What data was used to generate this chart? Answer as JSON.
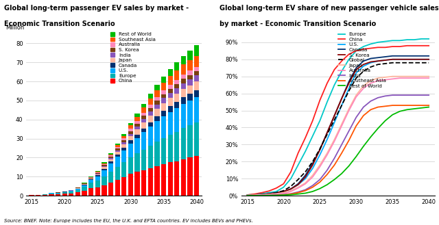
{
  "title1": "Global long-term passenger EV sales by market -\nEconomic Transition Scenario",
  "title2": "Global long-term EV share of new passenger vehicle sales\nby market - Economic Transition Scenario",
  "source": "Source: BNEF. Note: Europe includes the EU, the U.K. and EFTA countries. EV includes BEVs and PHEVs.",
  "years": [
    2015,
    2016,
    2017,
    2018,
    2019,
    2020,
    2021,
    2022,
    2023,
    2024,
    2025,
    2026,
    2027,
    2028,
    2029,
    2030,
    2031,
    2032,
    2033,
    2034,
    2035,
    2036,
    2037,
    2038,
    2039,
    2040
  ],
  "bar_data": {
    "China": [
      0.3,
      0.35,
      0.55,
      0.9,
      0.9,
      1.1,
      1.3,
      1.8,
      2.7,
      4.0,
      4.5,
      5.5,
      7.0,
      8.5,
      9.8,
      11.5,
      12.5,
      13.5,
      14.5,
      15.5,
      16.5,
      17.5,
      18.0,
      19.0,
      20.0,
      21.0
    ],
    "Europe": [
      0.1,
      0.1,
      0.15,
      0.25,
      0.35,
      0.6,
      0.9,
      1.3,
      2.0,
      2.8,
      3.5,
      4.8,
      5.8,
      6.8,
      7.8,
      8.8,
      9.8,
      10.8,
      11.8,
      12.8,
      13.8,
      14.5,
      15.5,
      16.5,
      17.0,
      17.5
    ],
    "U.S.": [
      0.1,
      0.1,
      0.15,
      0.25,
      0.25,
      0.28,
      0.35,
      0.55,
      0.9,
      1.4,
      2.2,
      3.2,
      4.2,
      5.2,
      6.2,
      7.2,
      8.0,
      9.0,
      10.0,
      10.8,
      11.5,
      12.0,
      12.5,
      12.8,
      13.0,
      13.2
    ],
    "Canada": [
      0.0,
      0.0,
      0.0,
      0.04,
      0.04,
      0.08,
      0.09,
      0.15,
      0.25,
      0.35,
      0.55,
      0.75,
      0.95,
      1.15,
      1.35,
      1.6,
      1.85,
      2.1,
      2.35,
      2.6,
      2.85,
      3.05,
      3.2,
      3.35,
      3.45,
      3.55
    ],
    "Japan": [
      0.04,
      0.04,
      0.04,
      0.08,
      0.08,
      0.08,
      0.12,
      0.18,
      0.25,
      0.42,
      0.6,
      0.85,
      1.1,
      1.4,
      1.75,
      2.2,
      2.65,
      3.1,
      3.55,
      3.85,
      4.05,
      4.25,
      4.35,
      4.45,
      4.55,
      4.65
    ],
    "India": [
      0.0,
      0.0,
      0.0,
      0.0,
      0.0,
      0.04,
      0.04,
      0.08,
      0.12,
      0.18,
      0.28,
      0.45,
      0.62,
      0.8,
      1.0,
      1.25,
      1.5,
      1.8,
      2.1,
      2.35,
      2.55,
      2.75,
      2.9,
      3.0,
      3.1,
      3.2
    ],
    "S. Korea": [
      0.0,
      0.0,
      0.04,
      0.04,
      0.08,
      0.08,
      0.12,
      0.18,
      0.25,
      0.35,
      0.45,
      0.62,
      0.8,
      0.98,
      1.18,
      1.38,
      1.55,
      1.72,
      1.85,
      1.95,
      2.05,
      2.12,
      2.18,
      2.22,
      2.25,
      2.28
    ],
    "Australia": [
      0.0,
      0.0,
      0.0,
      0.0,
      0.0,
      0.04,
      0.04,
      0.08,
      0.12,
      0.18,
      0.28,
      0.45,
      0.62,
      0.8,
      1.0,
      1.22,
      1.42,
      1.62,
      1.8,
      1.92,
      2.02,
      2.1,
      2.18,
      2.25,
      2.28,
      2.32
    ],
    "Southeast Asia": [
      0.0,
      0.0,
      0.0,
      0.0,
      0.0,
      0.0,
      0.04,
      0.08,
      0.12,
      0.18,
      0.28,
      0.45,
      0.7,
      0.98,
      1.32,
      1.78,
      2.22,
      2.68,
      3.12,
      3.58,
      4.05,
      4.52,
      5.0,
      5.3,
      5.52,
      5.72
    ],
    "Rest of World": [
      0.0,
      0.0,
      0.0,
      0.0,
      0.04,
      0.08,
      0.08,
      0.12,
      0.18,
      0.25,
      0.35,
      0.52,
      0.7,
      0.9,
      1.1,
      1.35,
      1.62,
      1.98,
      2.32,
      2.7,
      3.15,
      3.62,
      4.1,
      4.58,
      5.05,
      5.52
    ]
  },
  "bar_colors": {
    "China": "#FF0000",
    "Europe": "#00B0B0",
    "U.S.": "#00AAFF",
    "Canada": "#003070",
    "Japan": "#FFB8A0",
    "India": "#8855BB",
    "S. Korea": "#7B3F10",
    "Australia": "#FF88BB",
    "Southeast Asia": "#FF5500",
    "Rest of World": "#00BB00"
  },
  "share_years": [
    2015,
    2016,
    2017,
    2018,
    2019,
    2020,
    2021,
    2022,
    2023,
    2024,
    2025,
    2026,
    2027,
    2028,
    2029,
    2030,
    2031,
    2032,
    2033,
    2034,
    2035,
    2036,
    2037,
    2038,
    2039,
    2040
  ],
  "share_data": {
    "Europe": [
      0.5,
      0.8,
      1.2,
      1.8,
      2.5,
      5.0,
      10.0,
      18.0,
      26.0,
      35.0,
      44.0,
      55.0,
      65.0,
      73.0,
      80.0,
      85.0,
      87.5,
      89.0,
      90.0,
      90.5,
      91.0,
      91.0,
      91.5,
      91.5,
      92.0,
      92.0
    ],
    "China": [
      0.5,
      1.0,
      1.8,
      2.8,
      4.5,
      7.0,
      14.0,
      25.0,
      34.0,
      44.0,
      56.0,
      66.0,
      74.0,
      79.0,
      83.0,
      85.0,
      86.0,
      86.5,
      87.0,
      87.0,
      87.5,
      87.5,
      88.0,
      88.0,
      88.0,
      88.0
    ],
    "U.S.": [
      0.3,
      0.5,
      0.8,
      1.2,
      1.8,
      2.5,
      4.0,
      6.5,
      10.0,
      16.0,
      24.0,
      33.0,
      43.0,
      53.0,
      63.0,
      72.0,
      76.0,
      78.0,
      79.0,
      79.5,
      80.0,
      80.0,
      80.0,
      80.0,
      80.0,
      80.0
    ],
    "Canada": [
      0.3,
      0.5,
      0.8,
      1.2,
      1.8,
      2.5,
      4.0,
      7.0,
      12.0,
      19.0,
      27.0,
      37.0,
      47.0,
      57.0,
      67.0,
      75.0,
      79.0,
      80.5,
      81.0,
      81.5,
      82.0,
      82.0,
      82.0,
      82.0,
      82.0,
      82.0
    ],
    "S. Korea": [
      0.2,
      0.4,
      0.6,
      1.2,
      1.8,
      2.5,
      4.0,
      6.5,
      11.0,
      18.0,
      27.0,
      37.0,
      47.0,
      57.0,
      66.0,
      74.0,
      77.0,
      78.5,
      79.0,
      79.5,
      80.0,
      80.0,
      80.0,
      80.0,
      80.0,
      80.0
    ],
    "Global": [
      0.2,
      0.4,
      0.7,
      1.1,
      1.7,
      3.0,
      5.5,
      9.5,
      14.0,
      20.0,
      27.5,
      36.0,
      44.5,
      53.0,
      61.5,
      69.0,
      73.0,
      75.5,
      77.0,
      77.5,
      78.0,
      78.0,
      78.0,
      78.0,
      78.0,
      78.0
    ],
    "Japan": [
      0.3,
      0.4,
      0.6,
      0.9,
      1.2,
      1.8,
      3.0,
      5.0,
      7.5,
      12.0,
      18.0,
      25.0,
      33.0,
      42.0,
      51.0,
      59.0,
      64.5,
      67.5,
      69.0,
      69.5,
      70.0,
      70.0,
      70.0,
      70.0,
      70.0,
      70.0
    ],
    "Australia": [
      0.2,
      0.3,
      0.4,
      0.7,
      1.0,
      1.3,
      2.5,
      4.5,
      7.0,
      11.0,
      17.0,
      24.0,
      32.0,
      41.0,
      50.0,
      58.0,
      63.0,
      66.0,
      67.5,
      68.0,
      68.5,
      69.0,
      69.0,
      69.0,
      69.0,
      69.0
    ],
    "India": [
      0.1,
      0.1,
      0.2,
      0.3,
      0.5,
      0.7,
      1.2,
      2.2,
      3.5,
      6.0,
      9.5,
      15.0,
      22.0,
      30.0,
      38.0,
      46.0,
      52.0,
      55.5,
      57.5,
      58.5,
      59.0,
      59.0,
      59.0,
      59.0,
      59.0,
      59.0
    ],
    "Southeast Asia": [
      0.1,
      0.1,
      0.1,
      0.2,
      0.3,
      0.5,
      1.0,
      1.8,
      3.0,
      5.0,
      8.0,
      12.5,
      18.0,
      25.0,
      32.5,
      41.0,
      47.0,
      50.5,
      52.0,
      52.5,
      53.0,
      53.0,
      53.0,
      53.0,
      53.0,
      53.0
    ],
    "Rest of World": [
      0.1,
      0.1,
      0.1,
      0.2,
      0.2,
      0.4,
      0.6,
      1.0,
      1.5,
      2.5,
      4.2,
      6.5,
      9.5,
      13.0,
      17.5,
      23.0,
      29.0,
      34.5,
      39.5,
      44.0,
      47.5,
      49.5,
      50.5,
      51.0,
      51.5,
      52.0
    ]
  },
  "share_colors": {
    "Europe": "#00C8C8",
    "China": "#FF2020",
    "U.S.": "#00AAFF",
    "Canada": "#003070",
    "S. Korea": "#8B0000",
    "Global": "#000000",
    "Japan": "#FFB8A0",
    "Australia": "#FF88BB",
    "India": "#8855BB",
    "Southeast Asia": "#FF5500",
    "Rest of World": "#00BB00"
  }
}
